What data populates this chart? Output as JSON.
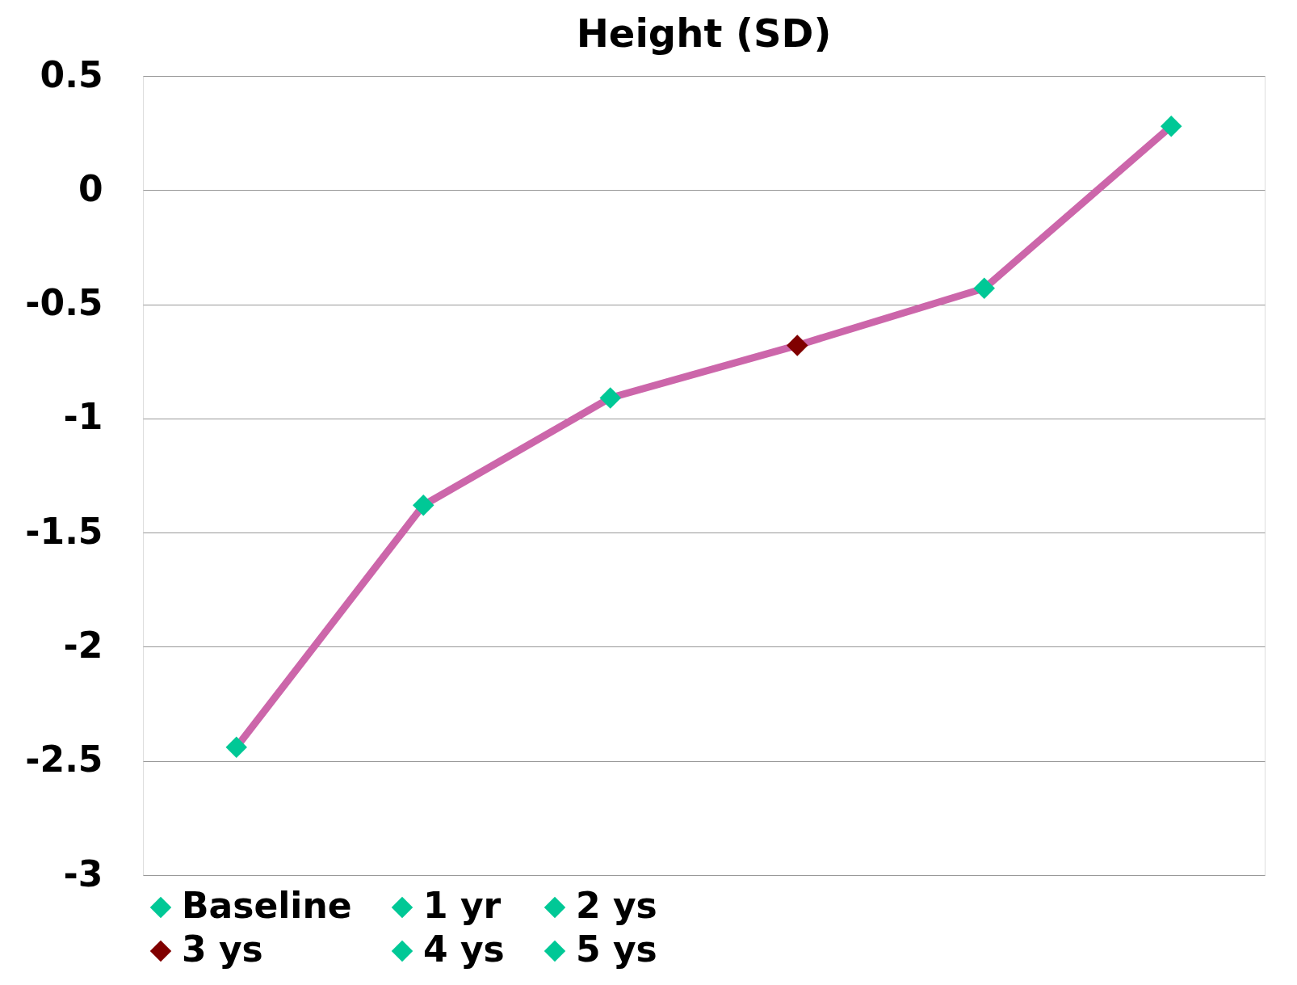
{
  "chart_data": {
    "type": "line",
    "title": "Height (SD)",
    "categories": [
      null,
      null,
      null,
      null,
      null,
      null
    ],
    "series": [
      {
        "color": "#cc66aa",
        "marker": "none",
        "values": [
          -2.44,
          -1.38,
          -0.91,
          -0.68,
          -0.43,
          0.28
        ]
      },
      {
        "type": "scatter",
        "name": "Baseline",
        "color": "#00c896",
        "values": [
          -2.44,
          null,
          null,
          null,
          null,
          null
        ]
      },
      {
        "type": "scatter",
        "name": "1 yr",
        "color": "#00c896",
        "values": [
          null,
          -1.38,
          null,
          null,
          null,
          null
        ]
      },
      {
        "type": "scatter",
        "name": "2 ys",
        "color": "#00c896",
        "values": [
          null,
          null,
          -0.91,
          null,
          null,
          null
        ]
      },
      {
        "type": "scatter",
        "name": "3 ys",
        "color": "#800000",
        "values": [
          null,
          null,
          null,
          -0.68,
          null,
          null
        ]
      },
      {
        "type": "scatter",
        "name": "4 ys",
        "color": "#00c896",
        "values": [
          null,
          null,
          null,
          null,
          -0.43,
          null
        ]
      },
      {
        "type": "scatter",
        "name": "5 ys",
        "color": "#00c896",
        "values": [
          null,
          null,
          null,
          null,
          null,
          0.28
        ]
      }
    ],
    "ylim": [
      -3,
      0.5
    ],
    "yticks": [
      -3,
      -2.5,
      -2,
      -1.5,
      -1,
      -0.5,
      0,
      0.5
    ],
    "grid": "y",
    "legend": "bottom",
    "marker": "diamond",
    "line_style": "solid",
    "tick_labels": "y"
  }
}
